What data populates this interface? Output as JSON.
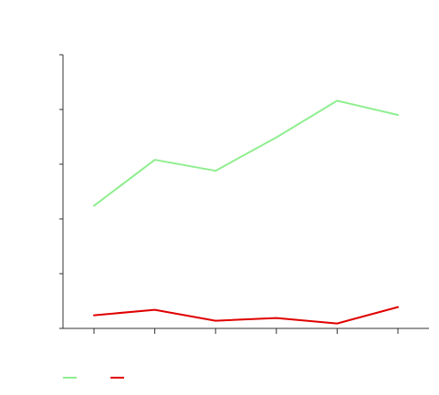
{
  "chart_data": {
    "type": "line",
    "title": "",
    "xlabel": "",
    "ylabel": "",
    "x": [
      1,
      2,
      3,
      4,
      5,
      6
    ],
    "ylim": [
      0,
      5
    ],
    "yticks": [
      0,
      1,
      2,
      3,
      4,
      5
    ],
    "grid": false,
    "legend": "bottom-left",
    "series": [
      {
        "color": "#90ee90",
        "values": [
          2.24,
          3.08,
          2.88,
          3.49,
          4.16,
          3.9
        ]
      },
      {
        "color": "#e00000",
        "values": [
          0.24,
          0.34,
          0.14,
          0.19,
          0.09,
          0.39
        ]
      }
    ]
  }
}
